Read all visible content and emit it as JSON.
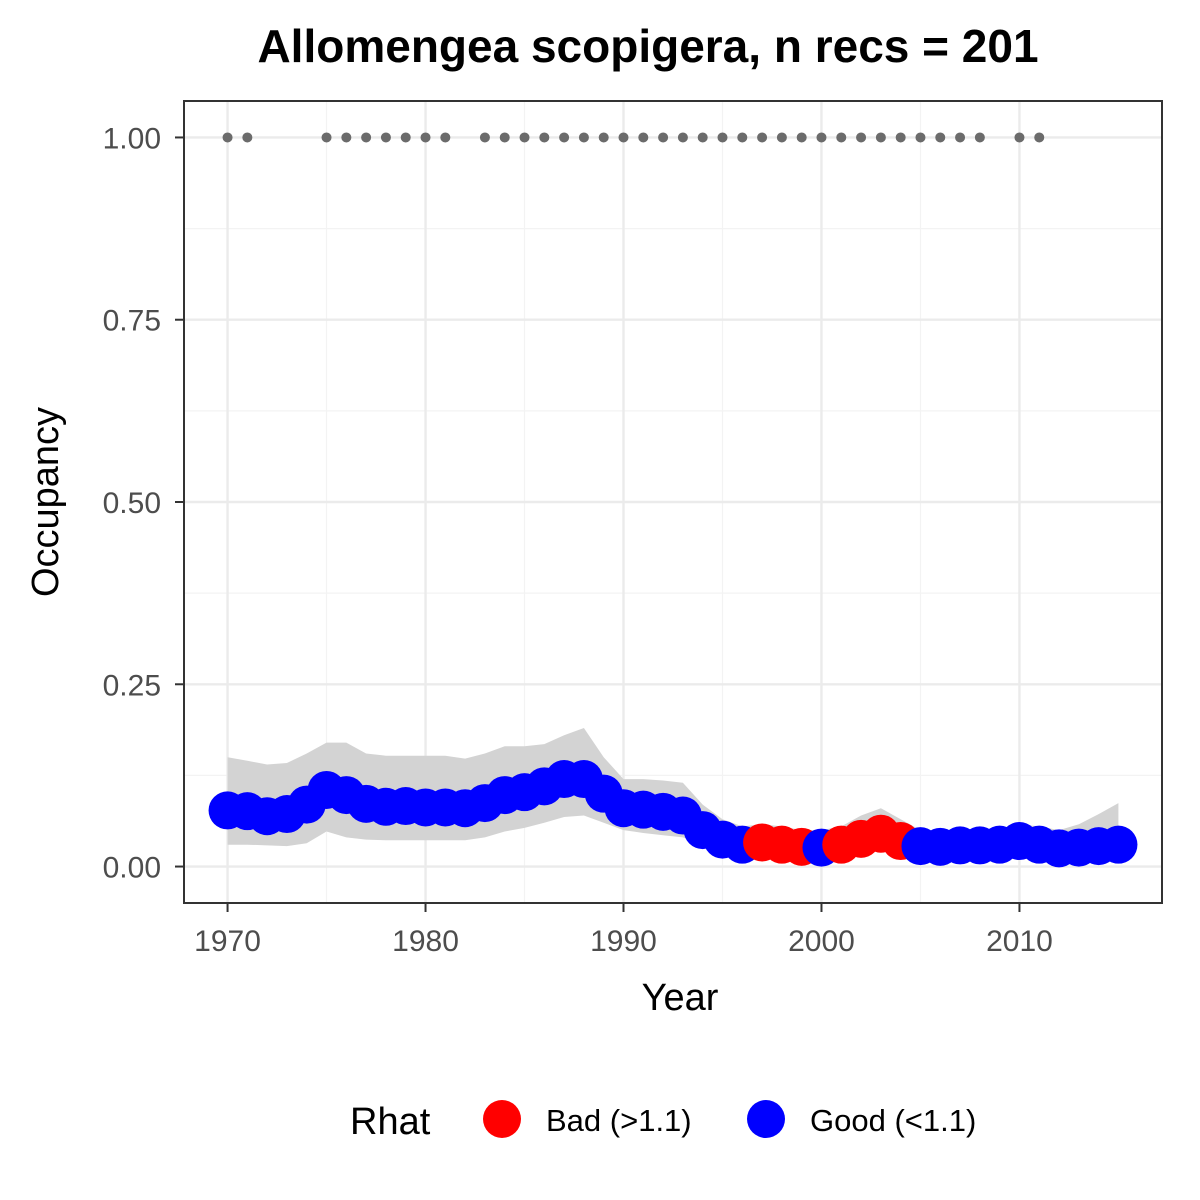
{
  "chart_data": {
    "type": "line",
    "title": "Allomengea scopigera, n recs = 201",
    "xlabel": "Year",
    "ylabel": "Occupancy",
    "xlim": [
      1967.8,
      2017.2
    ],
    "ylim": [
      -0.05,
      1.05
    ],
    "x_ticks": [
      1970,
      1980,
      1990,
      2000,
      2010
    ],
    "x_tick_labels": [
      "1970",
      "1980",
      "1990",
      "2000",
      "2010"
    ],
    "y_ticks": [
      0,
      0.25,
      0.5,
      0.75,
      1.0
    ],
    "y_tick_labels": [
      "0.00",
      "0.25",
      "0.50",
      "0.75",
      "1.00"
    ],
    "grid": true,
    "legend": {
      "title": "Rhat",
      "placement": "bottom",
      "entries": [
        {
          "label": "Bad (>1.1)",
          "color": "#ff0000"
        },
        {
          "label": "Good (<1.1)",
          "color": "#0000ff"
        }
      ]
    },
    "colors": {
      "good": "#0000ff",
      "bad": "#ff0000",
      "ribbon": "#d3d3d3",
      "record_dots": "#6b6b6b"
    },
    "record_years": [
      1970,
      1971,
      1975,
      1976,
      1977,
      1978,
      1979,
      1980,
      1981,
      1983,
      1984,
      1985,
      1986,
      1987,
      1988,
      1989,
      1990,
      1991,
      1992,
      1993,
      1994,
      1995,
      1996,
      1997,
      1998,
      1999,
      2000,
      2001,
      2002,
      2003,
      2004,
      2005,
      2006,
      2007,
      2008,
      2010,
      2011
    ],
    "record_value": 1.0,
    "series": [
      {
        "x": [
          1970,
          1971,
          1972,
          1973,
          1974,
          1975,
          1976,
          1977,
          1978,
          1979,
          1980,
          1981,
          1982,
          1983,
          1984,
          1985,
          1986,
          1987,
          1988,
          1989,
          1990,
          1991,
          1992,
          1993,
          1994,
          1995,
          1996,
          1997,
          1998,
          1999,
          2000,
          2001,
          2002,
          2003,
          2004,
          2005,
          2006,
          2007,
          2008,
          2009,
          2010,
          2011,
          2012,
          2013,
          2014,
          2015
        ],
        "y": [
          0.077,
          0.076,
          0.069,
          0.072,
          0.085,
          0.105,
          0.098,
          0.086,
          0.082,
          0.083,
          0.081,
          0.081,
          0.08,
          0.087,
          0.098,
          0.102,
          0.11,
          0.12,
          0.12,
          0.1,
          0.08,
          0.078,
          0.075,
          0.07,
          0.05,
          0.037,
          0.03,
          0.033,
          0.03,
          0.027,
          0.026,
          0.03,
          0.038,
          0.045,
          0.035,
          0.028,
          0.027,
          0.029,
          0.029,
          0.03,
          0.035,
          0.03,
          0.025,
          0.026,
          0.028,
          0.03
        ],
        "lower": [
          0.03,
          0.03,
          0.029,
          0.028,
          0.032,
          0.048,
          0.04,
          0.037,
          0.036,
          0.036,
          0.036,
          0.036,
          0.036,
          0.04,
          0.048,
          0.053,
          0.06,
          0.068,
          0.07,
          0.06,
          0.05,
          0.046,
          0.043,
          0.04,
          0.03,
          0.022,
          0.018,
          0.019,
          0.016,
          0.015,
          0.014,
          0.015,
          0.02,
          0.024,
          0.02,
          0.016,
          0.015,
          0.016,
          0.016,
          0.017,
          0.019,
          0.015,
          0.013,
          0.014,
          0.014,
          0.014
        ],
        "upper": [
          0.15,
          0.145,
          0.14,
          0.142,
          0.155,
          0.17,
          0.17,
          0.155,
          0.152,
          0.152,
          0.152,
          0.152,
          0.148,
          0.155,
          0.165,
          0.165,
          0.168,
          0.18,
          0.19,
          0.15,
          0.12,
          0.12,
          0.118,
          0.115,
          0.085,
          0.065,
          0.055,
          0.058,
          0.055,
          0.05,
          0.05,
          0.055,
          0.07,
          0.08,
          0.065,
          0.05,
          0.048,
          0.05,
          0.05,
          0.052,
          0.058,
          0.055,
          0.05,
          0.058,
          0.072,
          0.087
        ],
        "rhat": [
          "Good",
          "Good",
          "Good",
          "Good",
          "Good",
          "Good",
          "Good",
          "Good",
          "Good",
          "Good",
          "Good",
          "Good",
          "Good",
          "Good",
          "Good",
          "Good",
          "Good",
          "Good",
          "Good",
          "Good",
          "Good",
          "Good",
          "Good",
          "Good",
          "Good",
          "Good",
          "Good",
          "Bad",
          "Bad",
          "Bad",
          "Good",
          "Bad",
          "Bad",
          "Bad",
          "Bad",
          "Good",
          "Good",
          "Good",
          "Good",
          "Good",
          "Good",
          "Good",
          "Good",
          "Good",
          "Good",
          "Good"
        ]
      }
    ]
  }
}
